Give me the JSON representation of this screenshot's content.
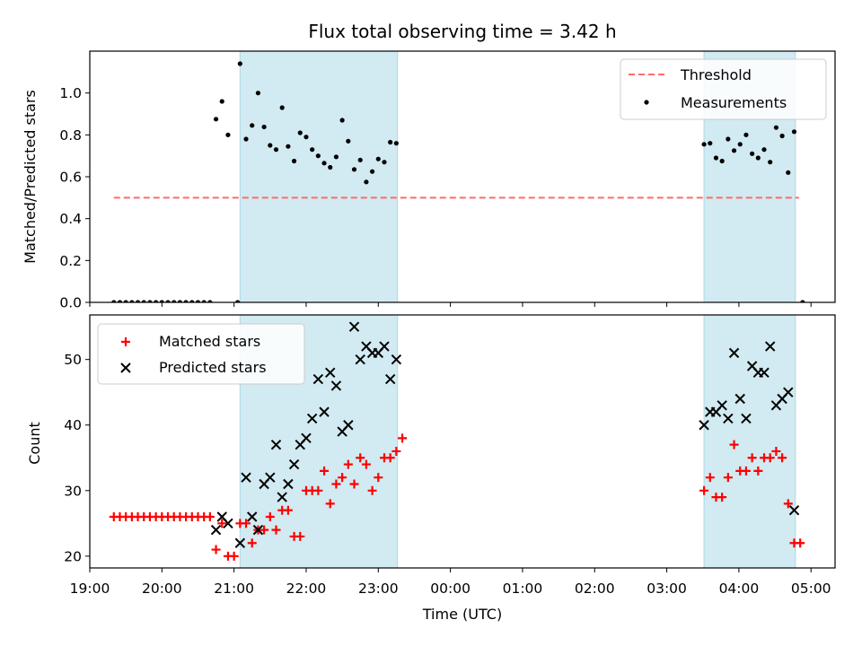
{
  "chart_data": {
    "title": "Flux total observing time = 3.42 h",
    "xlabel": "Time (UTC)",
    "xlim": [
      "19:00",
      "05:20"
    ],
    "x_ticks": [
      "19:00",
      "20:00",
      "21:00",
      "22:00",
      "23:00",
      "00:00",
      "01:00",
      "02:00",
      "03:00",
      "04:00",
      "05:00"
    ],
    "shaded_spans": [
      [
        "21:05",
        "23:16"
      ],
      [
        "03:31",
        "04:47"
      ]
    ],
    "colors": {
      "span": "#add8e6",
      "threshold": "#ff6b6b",
      "matched": "#ff0000",
      "predicted": "#000000",
      "measurements": "#000000"
    },
    "panels": [
      {
        "type": "scatter",
        "ylabel": "Matched/Predicted stars",
        "ylim": [
          0,
          1.2
        ],
        "y_ticks": [
          "0.0",
          "0.2",
          "0.4",
          "0.6",
          "0.8",
          "1.0"
        ],
        "legend": {
          "position": "top-right",
          "entries": [
            "Threshold",
            "Measurements"
          ]
        },
        "threshold": {
          "name": "Threshold",
          "y": 0.5,
          "x_range": [
            "19:20",
            "04:50"
          ],
          "style": "dashed"
        },
        "series": [
          {
            "name": "Measurements",
            "marker": "dot",
            "points": [
              [
                "19:20",
                0
              ],
              [
                "19:25",
                0
              ],
              [
                "19:30",
                0
              ],
              [
                "19:35",
                0
              ],
              [
                "19:40",
                0
              ],
              [
                "19:45",
                0
              ],
              [
                "19:50",
                0
              ],
              [
                "19:55",
                0
              ],
              [
                "20:00",
                0
              ],
              [
                "20:05",
                0
              ],
              [
                "20:10",
                0
              ],
              [
                "20:15",
                0
              ],
              [
                "20:20",
                0
              ],
              [
                "20:25",
                0
              ],
              [
                "20:30",
                0
              ],
              [
                "20:35",
                0
              ],
              [
                "20:40",
                0
              ],
              [
                "20:45",
                0.875
              ],
              [
                "20:50",
                0.96
              ],
              [
                "20:55",
                0.8
              ],
              [
                "21:05",
                1.14
              ],
              [
                "21:10",
                0.78
              ],
              [
                "21:15",
                0.845
              ],
              [
                "21:20",
                1.0
              ],
              [
                "21:25",
                0.838
              ],
              [
                "21:30",
                0.75
              ],
              [
                "21:35",
                0.73
              ],
              [
                "21:40",
                0.93
              ],
              [
                "21:45",
                0.745
              ],
              [
                "21:50",
                0.675
              ],
              [
                "21:55",
                0.81
              ],
              [
                "22:00",
                0.79
              ],
              [
                "22:05",
                0.73
              ],
              [
                "22:10",
                0.7
              ],
              [
                "22:15",
                0.665
              ],
              [
                "22:20",
                0.645
              ],
              [
                "22:25",
                0.695
              ],
              [
                "22:30",
                0.87
              ],
              [
                "22:35",
                0.77
              ],
              [
                "22:40",
                0.635
              ],
              [
                "22:45",
                0.68
              ],
              [
                "22:50",
                0.575
              ],
              [
                "22:55",
                0.625
              ],
              [
                "23:00",
                0.685
              ],
              [
                "23:05",
                0.67
              ],
              [
                "23:10",
                0.765
              ],
              [
                "23:15",
                0.76
              ],
              [
                "03:31",
                0.755
              ],
              [
                "03:36",
                0.76
              ],
              [
                "03:41",
                0.69
              ],
              [
                "03:46",
                0.675
              ],
              [
                "03:51",
                0.78
              ],
              [
                "03:56",
                0.725
              ],
              [
                "04:01",
                0.755
              ],
              [
                "04:06",
                0.8
              ],
              [
                "04:11",
                0.71
              ],
              [
                "04:16",
                0.69
              ],
              [
                "04:21",
                0.73
              ],
              [
                "04:26",
                0.67
              ],
              [
                "04:31",
                0.835
              ],
              [
                "04:36",
                0.795
              ],
              [
                "04:41",
                0.62
              ],
              [
                "04:46",
                0.815
              ],
              [
                "21:03",
                0
              ],
              [
                "04:53",
                0
              ]
            ]
          }
        ]
      },
      {
        "type": "scatter",
        "ylabel": "Count",
        "ylim": [
          18.2,
          56.8
        ],
        "y_ticks": [
          "20",
          "30",
          "40",
          "50"
        ],
        "legend": {
          "position": "top-left",
          "entries": [
            "Matched stars",
            "Predicted stars"
          ]
        },
        "series": [
          {
            "name": "Matched stars",
            "marker": "plus",
            "points": [
              [
                "19:20",
                26
              ],
              [
                "19:25",
                26
              ],
              [
                "19:30",
                26
              ],
              [
                "19:35",
                26
              ],
              [
                "19:40",
                26
              ],
              [
                "19:45",
                26
              ],
              [
                "19:50",
                26
              ],
              [
                "19:55",
                26
              ],
              [
                "20:00",
                26
              ],
              [
                "20:05",
                26
              ],
              [
                "20:10",
                26
              ],
              [
                "20:15",
                26
              ],
              [
                "20:20",
                26
              ],
              [
                "20:25",
                26
              ],
              [
                "20:30",
                26
              ],
              [
                "20:35",
                26
              ],
              [
                "20:40",
                26
              ],
              [
                "20:45",
                21
              ],
              [
                "20:50",
                25
              ],
              [
                "20:55",
                20
              ],
              [
                "21:00",
                20
              ],
              [
                "21:05",
                25
              ],
              [
                "21:10",
                25
              ],
              [
                "21:15",
                22
              ],
              [
                "21:20",
                24
              ],
              [
                "21:25",
                24
              ],
              [
                "21:30",
                26
              ],
              [
                "21:35",
                24
              ],
              [
                "21:40",
                27
              ],
              [
                "21:45",
                27
              ],
              [
                "21:50",
                23
              ],
              [
                "21:55",
                23
              ],
              [
                "22:00",
                30
              ],
              [
                "22:05",
                30
              ],
              [
                "22:10",
                30
              ],
              [
                "22:15",
                33
              ],
              [
                "22:20",
                28
              ],
              [
                "22:25",
                31
              ],
              [
                "22:30",
                32
              ],
              [
                "22:35",
                34
              ],
              [
                "22:40",
                31
              ],
              [
                "22:45",
                35
              ],
              [
                "22:50",
                34
              ],
              [
                "22:55",
                30
              ],
              [
                "23:00",
                32
              ],
              [
                "23:05",
                35
              ],
              [
                "23:10",
                35
              ],
              [
                "23:15",
                36
              ],
              [
                "23:20",
                38
              ],
              [
                "03:31",
                30
              ],
              [
                "03:36",
                32
              ],
              [
                "03:41",
                29
              ],
              [
                "03:46",
                29
              ],
              [
                "03:51",
                32
              ],
              [
                "03:56",
                37
              ],
              [
                "04:01",
                33
              ],
              [
                "04:06",
                33
              ],
              [
                "04:11",
                35
              ],
              [
                "04:16",
                33
              ],
              [
                "04:21",
                35
              ],
              [
                "04:26",
                35
              ],
              [
                "04:31",
                36
              ],
              [
                "04:36",
                35
              ],
              [
                "04:41",
                28
              ],
              [
                "04:46",
                22
              ],
              [
                "04:51",
                22
              ]
            ]
          },
          {
            "name": "Predicted stars",
            "marker": "x",
            "points": [
              [
                "20:45",
                24
              ],
              [
                "20:50",
                26
              ],
              [
                "20:55",
                25
              ],
              [
                "21:05",
                22
              ],
              [
                "21:10",
                32
              ],
              [
                "21:15",
                26
              ],
              [
                "21:20",
                24
              ],
              [
                "21:25",
                31
              ],
              [
                "21:30",
                32
              ],
              [
                "21:35",
                37
              ],
              [
                "21:40",
                29
              ],
              [
                "21:45",
                31
              ],
              [
                "21:50",
                34
              ],
              [
                "21:55",
                37
              ],
              [
                "22:00",
                38
              ],
              [
                "22:05",
                41
              ],
              [
                "22:10",
                47
              ],
              [
                "22:15",
                42
              ],
              [
                "22:20",
                48
              ],
              [
                "22:25",
                46
              ],
              [
                "22:30",
                39
              ],
              [
                "22:35",
                40
              ],
              [
                "22:40",
                55
              ],
              [
                "22:45",
                50
              ],
              [
                "22:50",
                52
              ],
              [
                "22:55",
                51
              ],
              [
                "23:00",
                51
              ],
              [
                "23:05",
                52
              ],
              [
                "23:10",
                47
              ],
              [
                "23:15",
                50
              ],
              [
                "03:31",
                40
              ],
              [
                "03:36",
                42
              ],
              [
                "03:41",
                42
              ],
              [
                "03:46",
                43
              ],
              [
                "03:51",
                41
              ],
              [
                "03:56",
                51
              ],
              [
                "04:01",
                44
              ],
              [
                "04:06",
                41
              ],
              [
                "04:11",
                49
              ],
              [
                "04:16",
                48
              ],
              [
                "04:21",
                48
              ],
              [
                "04:26",
                52
              ],
              [
                "04:31",
                43
              ],
              [
                "04:36",
                44
              ],
              [
                "04:41",
                45
              ],
              [
                "04:46",
                27
              ]
            ]
          }
        ]
      }
    ]
  }
}
